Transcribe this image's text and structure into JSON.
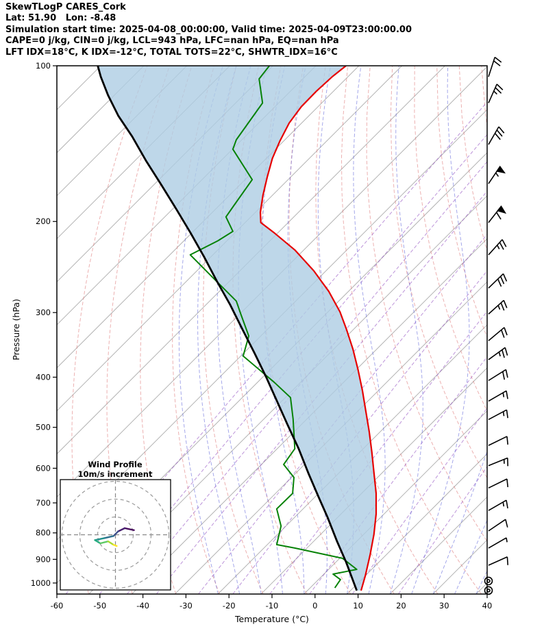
{
  "header": {
    "line1": "SkewTLogP CARES_Cork",
    "line2": "Lat: 51.90   Lon: -8.48",
    "line3": "Simulation start time: 2025-04-08_00:00:00, Valid time: 2025-04-09T23:00:00.00",
    "line4": "CAPE=0 j/kg, CIN=0 j/kg, LCL=943 hPa, LFC=nan hPa, EQ=nan hPa",
    "line5": "LFT IDX=18°C, K IDX=-12°C, TOTAL TOTS=22°C, SHWTR_IDX=16°C"
  },
  "chart_data": {
    "type": "skewt-logp",
    "title": "SkewTLogP CARES_Cork",
    "x_axis": {
      "label": "Temperature (°C)",
      "min": -60,
      "max": 40,
      "ticks": [
        -60,
        -50,
        -40,
        -30,
        -20,
        -10,
        0,
        10,
        20,
        30,
        40
      ]
    },
    "y_axis": {
      "label": "Pressure (hPa)",
      "scale": "log",
      "top": 100,
      "bottom": 1050,
      "ticks": [
        100,
        200,
        300,
        400,
        500,
        600,
        700,
        800,
        900,
        1000
      ]
    },
    "skew": {
      "deg_C_per_decade": 120.2,
      "note": "profile x values are skewed-axis coordinates read on the bottom axis; true T = x - 120.2*log10(1000/p)"
    },
    "series": {
      "temperature": {
        "color": "#e60000",
        "points": [
          [
            1034,
            10.7
          ],
          [
            967,
            11.7
          ],
          [
            882,
            12.8
          ],
          [
            805,
            13.7
          ],
          [
            735,
            14.2
          ],
          [
            671,
            14.2
          ],
          [
            612,
            13.7
          ],
          [
            558,
            13.2
          ],
          [
            510,
            12.6
          ],
          [
            465,
            11.8
          ],
          [
            424,
            11.0
          ],
          [
            387,
            10.0
          ],
          [
            353,
            8.8
          ],
          [
            323,
            7.3
          ],
          [
            299,
            5.8
          ],
          [
            273,
            3.2
          ],
          [
            249,
            -0.3
          ],
          [
            227,
            -4.7
          ],
          [
            210,
            -9.6
          ],
          [
            201,
            -12.6
          ],
          [
            192,
            -12.7
          ],
          [
            178,
            -12.1
          ],
          [
            164,
            -11.1
          ],
          [
            151,
            -9.9
          ],
          [
            140,
            -8.2
          ],
          [
            129,
            -6.0
          ],
          [
            120,
            -3.2
          ],
          [
            112,
            0.3
          ],
          [
            105,
            4.0
          ],
          [
            100,
            7.2
          ]
        ]
      },
      "dewpoint": {
        "color": "#068206",
        "points": [
          [
            1022,
            4.6
          ],
          [
            985,
            5.9
          ],
          [
            961,
            4.2
          ],
          [
            941,
            9.7
          ],
          [
            896,
            6.4
          ],
          [
            856,
            -4.7
          ],
          [
            843,
            -8.9
          ],
          [
            776,
            -7.9
          ],
          [
            719,
            -8.9
          ],
          [
            671,
            -5.2
          ],
          [
            625,
            -4.9
          ],
          [
            590,
            -7.3
          ],
          [
            550,
            -4.7
          ],
          [
            482,
            -5.1
          ],
          [
            438,
            -5.7
          ],
          [
            409,
            -9.5
          ],
          [
            364,
            -16.7
          ],
          [
            333,
            -15.4
          ],
          [
            303,
            -17.2
          ],
          [
            285,
            -18.3
          ],
          [
            256,
            -23.9
          ],
          [
            232,
            -29.0
          ],
          [
            218,
            -22.6
          ],
          [
            209,
            -19.1
          ],
          [
            196,
            -20.7
          ],
          [
            186,
            -18.8
          ],
          [
            166,
            -14.6
          ],
          [
            145,
            -19.1
          ],
          [
            139,
            -18.3
          ],
          [
            118,
            -12.2
          ],
          [
            106,
            -13.0
          ],
          [
            100,
            -10.6
          ]
        ]
      },
      "parcel": {
        "color": "#000000",
        "points": [
          [
            1034,
            9.7
          ],
          [
            910,
            7.2
          ],
          [
            830,
            5.1
          ],
          [
            746,
            2.9
          ],
          [
            681,
            0.8
          ],
          [
            612,
            -1.6
          ],
          [
            550,
            -3.8
          ],
          [
            494,
            -6.4
          ],
          [
            444,
            -8.9
          ],
          [
            399,
            -11.4
          ],
          [
            359,
            -14.1
          ],
          [
            323,
            -16.9
          ],
          [
            290,
            -19.7
          ],
          [
            261,
            -22.8
          ],
          [
            234,
            -25.8
          ],
          [
            210,
            -29.0
          ],
          [
            189,
            -32.3
          ],
          [
            170,
            -35.7
          ],
          [
            153,
            -39.2
          ],
          [
            137,
            -42.5
          ],
          [
            125,
            -45.7
          ],
          [
            114,
            -48.1
          ],
          [
            105,
            -49.8
          ],
          [
            100,
            -50.5
          ]
        ]
      },
      "shading": {
        "color": "#aecde3",
        "between": [
          "parcel",
          "temperature"
        ]
      }
    },
    "background": {
      "isotherms": {
        "color": "#a0a0a0",
        "values": [
          -180,
          -170,
          -160,
          -150,
          -140,
          -130,
          -120,
          -110,
          -100,
          -90,
          -80,
          -70,
          -60,
          -50,
          -40,
          -30,
          -20,
          -10,
          0,
          10,
          20,
          30,
          40
        ]
      },
      "dry_adiabats": {
        "color": "#e07b7b",
        "theta_K": [
          220,
          230,
          240,
          250,
          260,
          270,
          280,
          290,
          300,
          310,
          320,
          330,
          340,
          350,
          360,
          370,
          380,
          390,
          400
        ]
      },
      "moist_adiabats": {
        "color": "#5a5fd8",
        "start_temps_C": [
          -20,
          -15,
          -10,
          -5,
          0,
          5,
          10,
          15,
          20,
          25,
          30,
          35,
          40
        ]
      },
      "mixing_ratio": {
        "color": "#8f4bbf",
        "g_per_kg": [
          0.02,
          0.05,
          0.1,
          0.2,
          0.5,
          1,
          2,
          4,
          8,
          16
        ]
      }
    },
    "wind_barbs": [
      {
        "p": 105,
        "ang": 72,
        "full": 2
      },
      {
        "p": 118,
        "ang": 66,
        "full": 2,
        "half": 1
      },
      {
        "p": 142,
        "ang": 60,
        "full": 3
      },
      {
        "p": 169,
        "ang": 56,
        "flag": 1,
        "half": 1
      },
      {
        "p": 201,
        "ang": 52,
        "flag": 1,
        "full": 1
      },
      {
        "p": 232,
        "ang": 48,
        "full": 2,
        "half": 1
      },
      {
        "p": 269,
        "ang": 44,
        "full": 3
      },
      {
        "p": 302,
        "ang": 42,
        "full": 2,
        "half": 1
      },
      {
        "p": 340,
        "ang": 40,
        "full": 2
      },
      {
        "p": 370,
        "ang": 36,
        "full": 2,
        "half": 1
      },
      {
        "p": 406,
        "ang": 32,
        "full": 2
      },
      {
        "p": 445,
        "ang": 30,
        "full": 1,
        "half": 1
      },
      {
        "p": 483,
        "ang": 28,
        "full": 1,
        "half": 1
      },
      {
        "p": 542,
        "ang": 26,
        "full": 1
      },
      {
        "p": 593,
        "ang": 22,
        "full": 1,
        "half": 1
      },
      {
        "p": 655,
        "ang": 26,
        "full": 1
      },
      {
        "p": 724,
        "ang": 30,
        "full": 1,
        "half": 1
      },
      {
        "p": 793,
        "ang": 34,
        "full": 1
      },
      {
        "p": 856,
        "ang": 30,
        "half": 1
      },
      {
        "p": 924,
        "ang": 24,
        "full": 1
      },
      {
        "p": 991,
        "calm": true
      },
      {
        "p": 1034,
        "calm": true
      }
    ],
    "hodograph": {
      "title_line1": "Wind Profile",
      "title_line2": "10m/s increment",
      "rings_ms": [
        10,
        20,
        30
      ],
      "trace_uv_ms": [
        [
          10.4,
          2.6
        ],
        [
          5.2,
          3.7
        ],
        [
          1.5,
          1.9
        ],
        [
          -1.1,
          -0.7
        ],
        [
          -6.3,
          -1.9
        ],
        [
          -11.5,
          -3.0
        ],
        [
          -8.5,
          -4.8
        ],
        [
          -4.1,
          -3.7
        ],
        [
          -1.1,
          -5.6
        ],
        [
          0.7,
          -6.3
        ]
      ],
      "segment_colors": [
        "#46085c",
        "#471f70",
        "#3d4e8a",
        "#2e6f8e",
        "#21918c",
        "#27ad81",
        "#5cc863",
        "#aadc32",
        "#fde725"
      ]
    }
  }
}
